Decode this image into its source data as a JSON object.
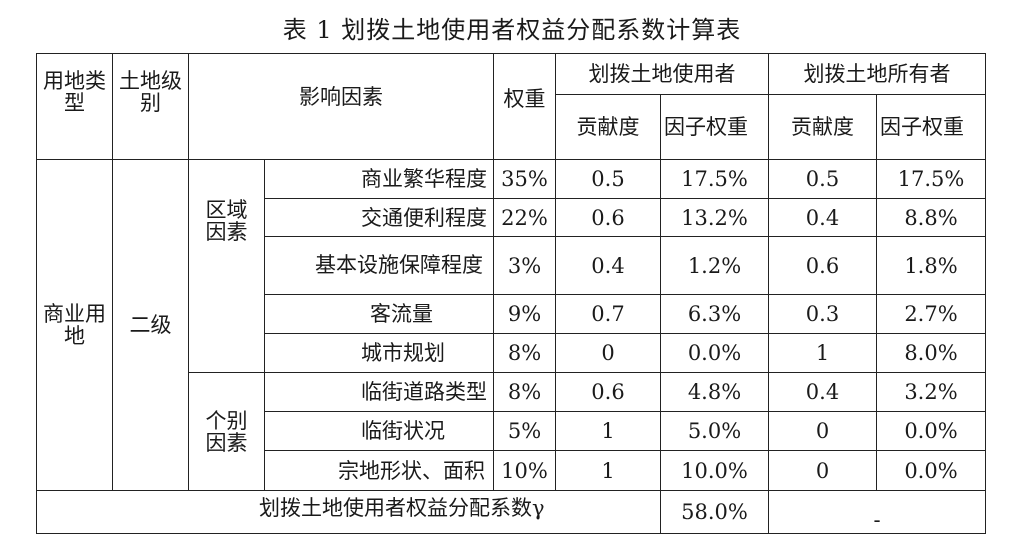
{
  "title": "表 1  划拨土地使用者权益分配系数计算表",
  "header": {
    "land_type": "用地类型",
    "land_grade": "土地级别",
    "factors": "影响因素",
    "weight": "权重",
    "user_group": "划拨土地使用者",
    "owner_group": "划拨土地所有者",
    "contribution": "贡献度",
    "factor_weight": "因子权重"
  },
  "body": {
    "land_type": "商业用地",
    "land_grade": "二级",
    "groups": [
      {
        "name": "区域因素"
      },
      {
        "name": "个别因素"
      }
    ],
    "rows": [
      {
        "factor": "商业繁华程度",
        "weight": "35%",
        "user_contrib": "0.5",
        "user_fw": "17.5%",
        "owner_contrib": "0.5",
        "owner_fw": "17.5%"
      },
      {
        "factor": "交通便利程度",
        "weight": "22%",
        "user_contrib": "0.6",
        "user_fw": "13.2%",
        "owner_contrib": "0.4",
        "owner_fw": "8.8%"
      },
      {
        "factor": "基本设施保障程度",
        "weight": "3%",
        "user_contrib": "0.4",
        "user_fw": "1.2%",
        "owner_contrib": "0.6",
        "owner_fw": "1.8%"
      },
      {
        "factor": "客流量",
        "weight": "9%",
        "user_contrib": "0.7",
        "user_fw": "6.3%",
        "owner_contrib": "0.3",
        "owner_fw": "2.7%"
      },
      {
        "factor": "城市规划",
        "weight": "8%",
        "user_contrib": "0",
        "user_fw": "0.0%",
        "owner_contrib": "1",
        "owner_fw": "8.0%"
      },
      {
        "factor": "临街道路类型",
        "weight": "8%",
        "user_contrib": "0.6",
        "user_fw": "4.8%",
        "owner_contrib": "0.4",
        "owner_fw": "3.2%"
      },
      {
        "factor": "临街状况",
        "weight": "5%",
        "user_contrib": "1",
        "user_fw": "5.0%",
        "owner_contrib": "0",
        "owner_fw": "0.0%"
      },
      {
        "factor": "宗地形状、面积",
        "weight": "10%",
        "user_contrib": "1",
        "user_fw": "10.0%",
        "owner_contrib": "0",
        "owner_fw": "0.0%"
      }
    ],
    "total_label": "划拨土地使用者权益分配系数γ",
    "total_value": "58.0%",
    "total_owner": "-"
  }
}
